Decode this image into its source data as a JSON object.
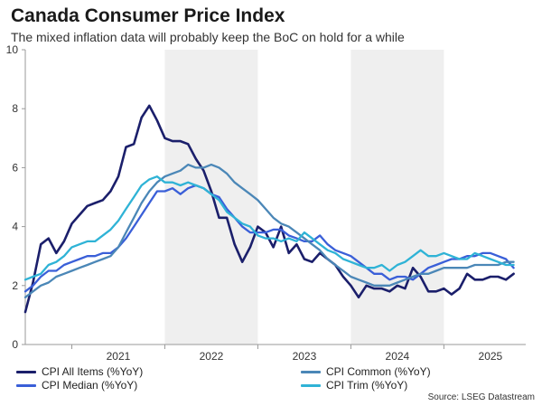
{
  "chart_data": {
    "type": "line",
    "title": "Canada Consumer Price Index",
    "subtitle": "The mixed inflation data will probably keep the BoC on hold for a while",
    "source": "Source: LSEG Datastream",
    "ylim": [
      0,
      10
    ],
    "yticks": [
      "0",
      "2",
      "4",
      "6",
      "8",
      "10"
    ],
    "xlim": [
      2020.5,
      2025.88
    ],
    "xticks": [
      "2021",
      "2022",
      "2023",
      "2024",
      "2025"
    ],
    "shaded_years": [
      2022,
      2024
    ],
    "legend_placement": "bottom",
    "series": [
      {
        "name": "CPI All Items (%YoY)",
        "color": "#1b1f6b",
        "x": [
          2020.5,
          2020.583,
          2020.667,
          2020.75,
          2020.833,
          2020.917,
          2021.0,
          2021.083,
          2021.167,
          2021.25,
          2021.333,
          2021.417,
          2021.5,
          2021.583,
          2021.667,
          2021.75,
          2021.833,
          2021.917,
          2022.0,
          2022.083,
          2022.167,
          2022.25,
          2022.333,
          2022.417,
          2022.5,
          2022.583,
          2022.667,
          2022.75,
          2022.833,
          2022.917,
          2023.0,
          2023.083,
          2023.167,
          2023.25,
          2023.333,
          2023.417,
          2023.5,
          2023.583,
          2023.667,
          2023.75,
          2023.833,
          2023.917,
          2024.0,
          2024.083,
          2024.167,
          2024.25,
          2024.333,
          2024.417,
          2024.5,
          2024.583,
          2024.667,
          2024.75,
          2024.833,
          2024.917,
          2025.0,
          2025.083,
          2025.167,
          2025.25,
          2025.333,
          2025.417,
          2025.5,
          2025.583,
          2025.667,
          2025.75
        ],
        "values": [
          1.1,
          2.1,
          3.4,
          3.6,
          3.1,
          3.5,
          4.1,
          4.4,
          4.7,
          4.8,
          4.9,
          5.2,
          5.7,
          6.7,
          6.8,
          7.7,
          8.1,
          7.6,
          7.0,
          6.9,
          6.9,
          6.8,
          6.3,
          5.9,
          5.2,
          4.3,
          4.3,
          3.4,
          2.8,
          3.3,
          4.0,
          3.8,
          3.3,
          4.0,
          3.1,
          3.4,
          2.9,
          2.8,
          3.1,
          2.9,
          2.7,
          2.3,
          2.0,
          1.6,
          2.0,
          1.9,
          1.9,
          1.8,
          2.0,
          1.9,
          2.6,
          2.3,
          1.8,
          1.8,
          1.9,
          1.7,
          1.9,
          2.4,
          2.2,
          2.2,
          2.3,
          2.3,
          2.2,
          2.4
        ]
      },
      {
        "name": "CPI Median (%YoY)",
        "color": "#3a5fd8",
        "x": [
          2020.5,
          2020.583,
          2020.667,
          2020.75,
          2020.833,
          2020.917,
          2021.0,
          2021.083,
          2021.167,
          2021.25,
          2021.333,
          2021.417,
          2021.5,
          2021.583,
          2021.667,
          2021.75,
          2021.833,
          2021.917,
          2022.0,
          2022.083,
          2022.167,
          2022.25,
          2022.333,
          2022.417,
          2022.5,
          2022.583,
          2022.667,
          2022.75,
          2022.833,
          2022.917,
          2023.0,
          2023.083,
          2023.167,
          2023.25,
          2023.333,
          2023.417,
          2023.5,
          2023.583,
          2023.667,
          2023.75,
          2023.833,
          2023.917,
          2024.0,
          2024.083,
          2024.167,
          2024.25,
          2024.333,
          2024.417,
          2024.5,
          2024.583,
          2024.667,
          2024.75,
          2024.833,
          2024.917,
          2025.0,
          2025.083,
          2025.167,
          2025.25,
          2025.333,
          2025.417,
          2025.5,
          2025.583,
          2025.667,
          2025.75
        ],
        "values": [
          1.8,
          2.0,
          2.3,
          2.5,
          2.5,
          2.7,
          2.8,
          2.9,
          3.0,
          3.0,
          3.1,
          3.1,
          3.3,
          3.6,
          4.0,
          4.4,
          4.8,
          5.2,
          5.2,
          5.3,
          5.1,
          5.3,
          5.4,
          5.3,
          5.1,
          5.0,
          4.6,
          4.3,
          4.0,
          3.8,
          3.8,
          3.8,
          3.9,
          3.9,
          3.7,
          3.6,
          3.5,
          3.5,
          3.7,
          3.4,
          3.2,
          3.1,
          3.0,
          2.8,
          2.6,
          2.4,
          2.4,
          2.2,
          2.3,
          2.3,
          2.2,
          2.4,
          2.6,
          2.7,
          2.8,
          2.9,
          2.9,
          3.0,
          3.0,
          3.1,
          3.1,
          3.0,
          2.9,
          2.6
        ]
      },
      {
        "name": "CPI Common (%YoY)",
        "color": "#4b87b7",
        "x": [
          2020.5,
          2020.583,
          2020.667,
          2020.75,
          2020.833,
          2020.917,
          2021.0,
          2021.083,
          2021.167,
          2021.25,
          2021.333,
          2021.417,
          2021.5,
          2021.583,
          2021.667,
          2021.75,
          2021.833,
          2021.917,
          2022.0,
          2022.083,
          2022.167,
          2022.25,
          2022.333,
          2022.417,
          2022.5,
          2022.583,
          2022.667,
          2022.75,
          2022.833,
          2022.917,
          2023.0,
          2023.083,
          2023.167,
          2023.25,
          2023.333,
          2023.417,
          2023.5,
          2023.583,
          2023.667,
          2023.75,
          2023.833,
          2023.917,
          2024.0,
          2024.083,
          2024.167,
          2024.25,
          2024.333,
          2024.417,
          2024.5,
          2024.583,
          2024.667,
          2024.75,
          2024.833,
          2024.917,
          2025.0,
          2025.083,
          2025.167,
          2025.25,
          2025.333,
          2025.417,
          2025.5,
          2025.583,
          2025.667,
          2025.75
        ],
        "values": [
          1.6,
          1.8,
          2.0,
          2.1,
          2.3,
          2.4,
          2.5,
          2.6,
          2.7,
          2.8,
          2.9,
          3.0,
          3.3,
          3.8,
          4.3,
          4.8,
          5.2,
          5.5,
          5.7,
          5.8,
          5.9,
          6.1,
          6.0,
          6.0,
          6.1,
          6.0,
          5.8,
          5.5,
          5.3,
          5.1,
          4.9,
          4.6,
          4.3,
          4.1,
          4.0,
          3.8,
          3.6,
          3.4,
          3.2,
          2.9,
          2.7,
          2.5,
          2.3,
          2.2,
          2.1,
          2.0,
          2.0,
          2.0,
          2.1,
          2.2,
          2.3,
          2.4,
          2.4,
          2.5,
          2.6,
          2.6,
          2.6,
          2.6,
          2.7,
          2.7,
          2.7,
          2.7,
          2.8,
          2.8
        ]
      },
      {
        "name": "CPI Trim (%YoY)",
        "color": "#2fb3d6",
        "x": [
          2020.5,
          2020.583,
          2020.667,
          2020.75,
          2020.833,
          2020.917,
          2021.0,
          2021.083,
          2021.167,
          2021.25,
          2021.333,
          2021.417,
          2021.5,
          2021.583,
          2021.667,
          2021.75,
          2021.833,
          2021.917,
          2022.0,
          2022.083,
          2022.167,
          2022.25,
          2022.333,
          2022.417,
          2022.5,
          2022.583,
          2022.667,
          2022.75,
          2022.833,
          2022.917,
          2023.0,
          2023.083,
          2023.167,
          2023.25,
          2023.333,
          2023.417,
          2023.5,
          2023.583,
          2023.667,
          2023.75,
          2023.833,
          2023.917,
          2024.0,
          2024.083,
          2024.167,
          2024.25,
          2024.333,
          2024.417,
          2024.5,
          2024.583,
          2024.667,
          2024.75,
          2024.833,
          2024.917,
          2025.0,
          2025.083,
          2025.167,
          2025.25,
          2025.333,
          2025.417,
          2025.5,
          2025.583,
          2025.667,
          2025.75
        ],
        "values": [
          2.2,
          2.3,
          2.4,
          2.7,
          2.8,
          3.0,
          3.3,
          3.4,
          3.5,
          3.5,
          3.7,
          3.9,
          4.2,
          4.6,
          5.0,
          5.4,
          5.6,
          5.7,
          5.5,
          5.5,
          5.4,
          5.5,
          5.4,
          5.3,
          5.1,
          4.9,
          4.5,
          4.3,
          4.1,
          4.0,
          3.7,
          3.6,
          3.6,
          3.5,
          3.6,
          3.5,
          3.8,
          3.6,
          3.4,
          3.2,
          3.1,
          2.9,
          2.8,
          2.7,
          2.6,
          2.6,
          2.7,
          2.5,
          2.7,
          2.8,
          3.0,
          3.2,
          3.0,
          3.0,
          3.1,
          3.0,
          2.9,
          2.9,
          3.1,
          3.0,
          2.9,
          2.8,
          2.7,
          2.7
        ]
      }
    ]
  }
}
